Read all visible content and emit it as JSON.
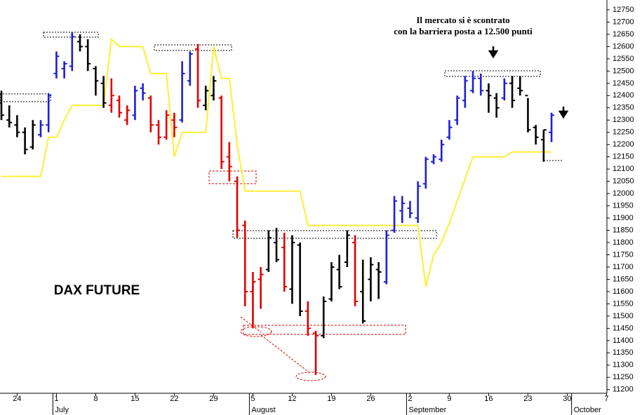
{
  "chart_data": {
    "type": "ohlc",
    "title": "DAX FUTURE",
    "annotation": [
      "Il mercato si è scontrato",
      "con la barriera posta a 12.500 punti"
    ],
    "categories": [
      null,
      null,
      "24",
      null,
      null,
      null,
      null,
      "1",
      null,
      null,
      null,
      null,
      "8",
      null,
      null,
      null,
      null,
      "15",
      null,
      null,
      null,
      null,
      "22",
      null,
      null,
      null,
      null,
      "29",
      null,
      null,
      null,
      null,
      "5",
      null,
      null,
      null,
      null,
      "12",
      null,
      null,
      null,
      null,
      "19",
      null,
      null,
      null,
      null,
      "26",
      null,
      null,
      null,
      null,
      "2",
      null,
      null,
      null,
      null,
      "9",
      null,
      null,
      null,
      null,
      "16",
      null,
      null,
      null,
      null,
      "23",
      null,
      null,
      null,
      null,
      "30",
      null,
      null,
      null,
      null,
      "7"
    ],
    "months": [
      null,
      null,
      null,
      null,
      null,
      null,
      null,
      "July",
      null,
      null,
      null,
      null,
      null,
      null,
      null,
      null,
      null,
      null,
      null,
      null,
      null,
      null,
      null,
      null,
      null,
      null,
      null,
      null,
      null,
      null,
      null,
      null,
      "August",
      null,
      null,
      null,
      null,
      null,
      null,
      null,
      null,
      null,
      null,
      null,
      null,
      null,
      null,
      null,
      null,
      null,
      null,
      null,
      "September",
      null,
      null,
      null,
      null,
      null,
      null,
      null,
      null,
      null,
      null,
      null,
      null,
      null,
      null,
      null,
      null,
      null,
      null,
      null,
      null,
      "October",
      null,
      null,
      null,
      null
    ],
    "open": [
      12370,
      12300,
      12280,
      12250,
      12190,
      12240,
      12280,
      12490,
      12510,
      12520,
      12620,
      12600,
      12510,
      12450,
      12360,
      12380,
      12300,
      12320,
      12430,
      12390,
      12280,
      12230,
      12300,
      12300,
      12460,
      12590,
      12360,
      12400,
      12390,
      12150,
      12050,
      11870,
      11600,
      11650,
      11690,
      11800,
      11780,
      11610,
      11790,
      11520,
      11430,
      11420,
      11570,
      11690,
      11720,
      11800,
      11600,
      11650,
      11690,
      11640,
      11850,
      11930,
      11940,
      11900,
      12040,
      12130,
      12140,
      12230,
      12300,
      12380,
      12420,
      12470,
      12420,
      12390,
      12390,
      12450,
      12430,
      12400,
      12270,
      12220,
      12250,
      null,
      null,
      null,
      null,
      null,
      null,
      null
    ],
    "high": [
      12420,
      12360,
      12320,
      12270,
      12300,
      12300,
      12410,
      12580,
      12540,
      12660,
      12650,
      12630,
      12520,
      12480,
      12470,
      12400,
      12360,
      12440,
      12450,
      12400,
      12300,
      12340,
      12330,
      12540,
      12580,
      12610,
      12440,
      12480,
      12400,
      12210,
      12070,
      11890,
      11680,
      11700,
      11850,
      11860,
      11840,
      11830,
      11800,
      11560,
      11440,
      11580,
      11720,
      11750,
      11850,
      11830,
      11730,
      11740,
      11720,
      11850,
      11990,
      11990,
      11970,
      12050,
      12150,
      12160,
      12220,
      12300,
      12400,
      12480,
      12500,
      12490,
      12450,
      12410,
      12470,
      12480,
      12480,
      12390,
      12280,
      12260,
      12330,
      null,
      null,
      null,
      null,
      null,
      null,
      null
    ],
    "low": [
      12300,
      12270,
      12230,
      12160,
      12180,
      12230,
      12250,
      12470,
      12470,
      12500,
      12580,
      12500,
      12400,
      12350,
      12330,
      12310,
      12280,
      12300,
      12380,
      12250,
      12200,
      12220,
      12230,
      12290,
      12440,
      12350,
      12340,
      12380,
      12100,
      12050,
      11820,
      11540,
      11450,
      11530,
      11680,
      11720,
      11600,
      11550,
      11500,
      11420,
      11260,
      11410,
      11560,
      11610,
      11700,
      11540,
      11470,
      11560,
      11570,
      11630,
      11840,
      11880,
      11900,
      11880,
      12020,
      12120,
      12130,
      12220,
      12280,
      12350,
      12410,
      12400,
      12330,
      12310,
      12380,
      12350,
      12400,
      12250,
      12200,
      12130,
      12210,
      null,
      null,
      null,
      null,
      null,
      null,
      null
    ],
    "close": [
      12320,
      12290,
      12250,
      12180,
      12280,
      12280,
      12400,
      12560,
      12530,
      12640,
      12600,
      12530,
      12460,
      12370,
      12400,
      12330,
      12340,
      12420,
      12410,
      12280,
      12230,
      12320,
      12270,
      12490,
      12570,
      12380,
      12420,
      12460,
      12130,
      12110,
      11850,
      11600,
      11640,
      11670,
      11820,
      11730,
      11620,
      11800,
      11520,
      11450,
      11420,
      11560,
      11700,
      11620,
      11830,
      11560,
      11480,
      11710,
      11680,
      11830,
      11970,
      11960,
      11920,
      12030,
      12140,
      12150,
      12200,
      12270,
      12390,
      12460,
      12470,
      12420,
      12400,
      12350,
      12450,
      12380,
      12420,
      12260,
      12230,
      12260,
      12320,
      null,
      null,
      null,
      null,
      null,
      null,
      null
    ],
    "colors": [
      "#000000",
      "#000000",
      "#000000",
      "#000000",
      "#000000",
      "#1f1fd6",
      "#1f1fd6",
      "#1f1fd6",
      "#1f1fd6",
      "#1f1fd6",
      "#000000",
      "#000000",
      "#000000",
      "#000000",
      "#e00000",
      "#e00000",
      "#e00000",
      "#1f1fd6",
      "#1f1fd6",
      "#e00000",
      "#e00000",
      "#e00000",
      "#e00000",
      "#1f1fd6",
      "#1f1fd6",
      "#e00000",
      "#000000",
      "#000000",
      "#e00000",
      "#e00000",
      "#e00000",
      "#e00000",
      "#e00000",
      "#e00000",
      "#000000",
      "#000000",
      "#e00000",
      "#000000",
      "#000000",
      "#e00000",
      "#e00000",
      "#000000",
      "#000000",
      "#000000",
      "#000000",
      "#e00000",
      "#000000",
      "#000000",
      "#000000",
      "#1f1fd6",
      "#1f1fd6",
      "#1f1fd6",
      "#1f1fd6",
      "#1f1fd6",
      "#1f1fd6",
      "#1f1fd6",
      "#1f1fd6",
      "#1f1fd6",
      "#1f1fd6",
      "#1f1fd6",
      "#1f1fd6",
      "#1f1fd6",
      "#000000",
      "#000000",
      "#1f1fd6",
      "#000000",
      "#000000",
      "#000000",
      "#000000",
      "#000000",
      "#1f1fd6",
      null,
      null,
      null,
      null,
      null,
      null,
      null
    ],
    "indicator": {
      "color": "#ffee33",
      "values": [
        12070,
        12070,
        12070,
        12070,
        12070,
        12070,
        12230,
        12230,
        12300,
        12360,
        12360,
        12360,
        12360,
        12360,
        12630,
        12600,
        12600,
        12600,
        12600,
        12490,
        12490,
        12490,
        12150,
        12250,
        12250,
        12250,
        12250,
        12600,
        12470,
        12470,
        12200,
        12010,
        12010,
        12010,
        12010,
        12010,
        12010,
        12010,
        12010,
        11870,
        11870,
        11870,
        11870,
        11870,
        11870,
        11870,
        11870,
        11870,
        11870,
        11870,
        11870,
        11870,
        11870,
        11870,
        11620,
        11750,
        11800,
        11880,
        11970,
        12060,
        12150,
        12150,
        12150,
        12150,
        12150,
        12170,
        12170,
        12170,
        12170,
        12170,
        12170,
        null,
        null,
        null,
        null,
        null,
        null,
        null
      ]
    },
    "ylim": [
      11145,
      12790
    ],
    "yticks": [
      11200,
      11250,
      11300,
      11350,
      11400,
      11450,
      11500,
      11550,
      11600,
      11650,
      11700,
      11750,
      11800,
      11850,
      11900,
      11950,
      12000,
      12050,
      12100,
      12150,
      12200,
      12250,
      12300,
      12350,
      12400,
      12450,
      12500,
      12550,
      12600,
      12650,
      12700,
      12750
    ]
  }
}
